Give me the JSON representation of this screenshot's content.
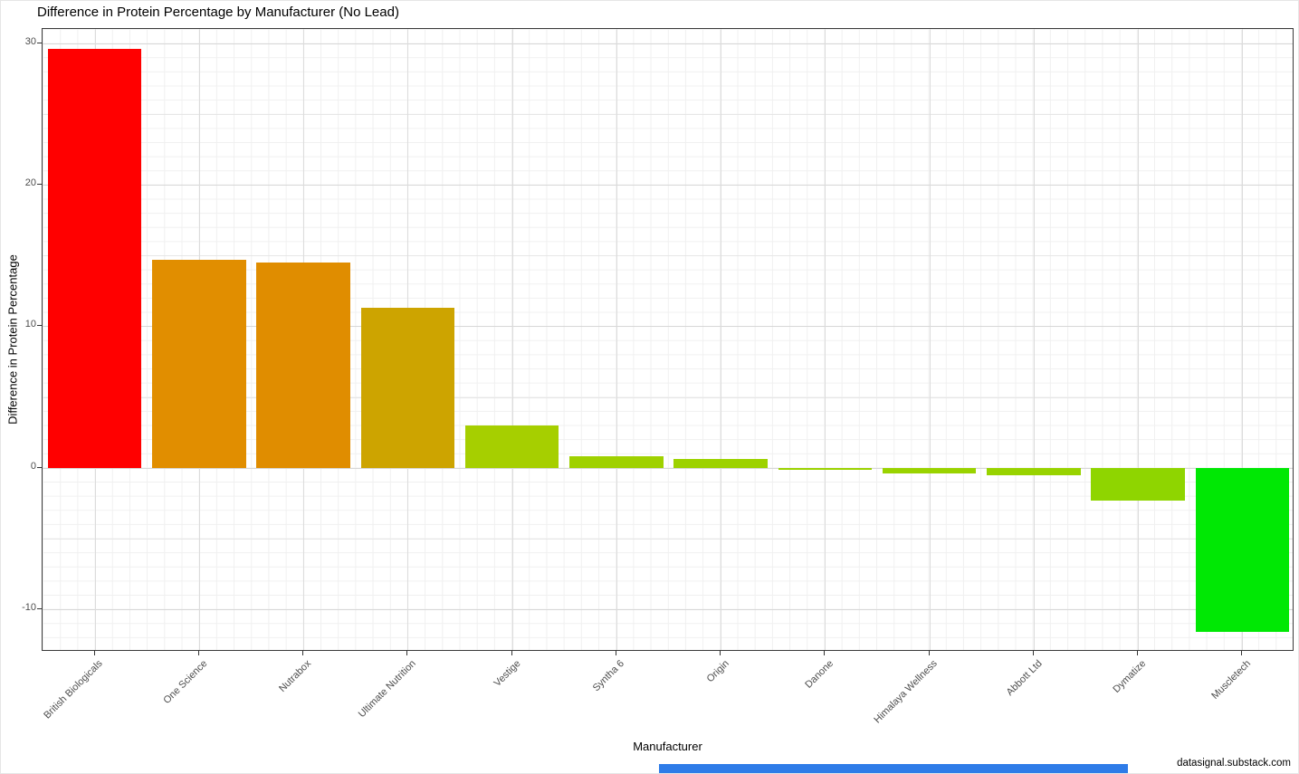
{
  "footer": "datasignal.substack.com",
  "accent": {
    "bottom_strip_color": "#2e7ce8"
  },
  "chart_data": {
    "type": "bar",
    "title": "Difference in Protein Percentage by Manufacturer (No Lead)",
    "xlabel": "Manufacturer",
    "ylabel": "Difference in Protein Percentage",
    "ylim": [
      -13,
      31
    ],
    "yticks": [
      30,
      20,
      10,
      0,
      -10
    ],
    "yticks_minor": [
      25,
      15,
      5,
      -5
    ],
    "grid": true,
    "legend": "none",
    "categories": [
      "British Biologicals",
      "One Science",
      "Nutrabox",
      "Ultimate Nutrition",
      "Vestige",
      "Syntha 6",
      "Origin",
      "Danone",
      "Himalaya Wellness",
      "Abbott Ltd",
      "Dymatize",
      "Muscletech"
    ],
    "values": [
      29.6,
      14.7,
      14.5,
      11.3,
      3.0,
      0.8,
      0.6,
      -0.15,
      -0.4,
      -0.5,
      -2.3,
      -11.6
    ],
    "colors": [
      "#ff0000",
      "#e18e00",
      "#e08d00",
      "#cda400",
      "#a6cf00",
      "#9fd100",
      "#9dd200",
      "#9bd200",
      "#9ad300",
      "#98d300",
      "#8fd500",
      "#00e804"
    ]
  }
}
